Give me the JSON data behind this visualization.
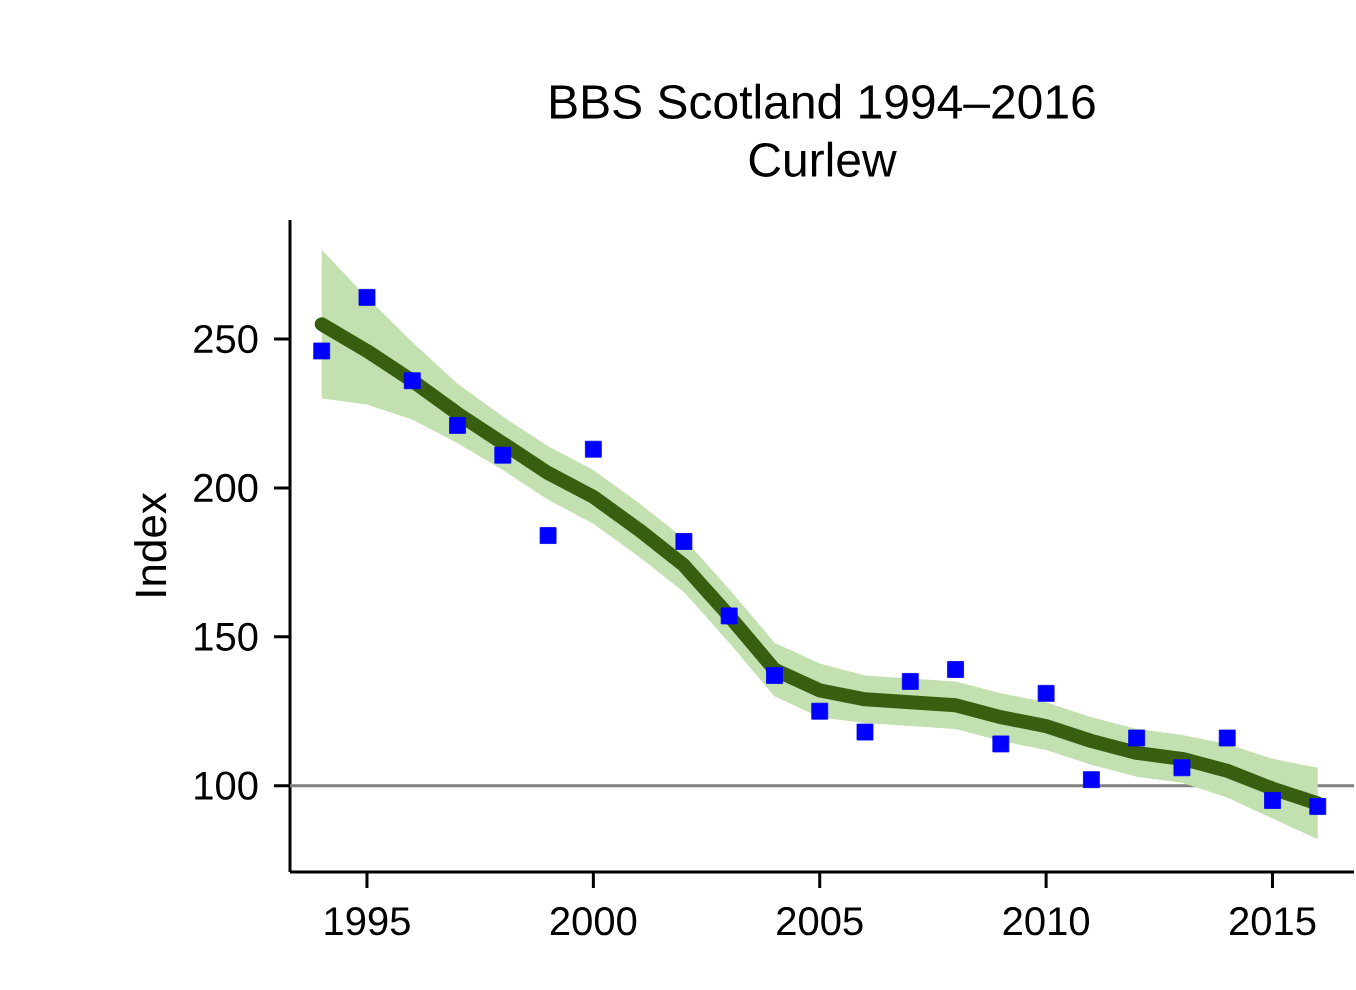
{
  "chart_data": {
    "type": "scatter",
    "title": "BBS Scotland 1994–2016",
    "subtitle": "Curlew",
    "ylabel": "Index",
    "xlim": [
      1993.3,
      2016.8
    ],
    "xticks": [
      1995,
      2000,
      2005,
      2010,
      2015
    ],
    "ylim": [
      71,
      290
    ],
    "yticks": [
      100,
      150,
      200,
      250
    ],
    "grid": false,
    "marker": "square",
    "ref_lines": [
      {
        "axis": "y",
        "value": 100,
        "color": "#808080"
      }
    ],
    "series": [
      {
        "type": "line",
        "color": "#385e0f",
        "marker": "none",
        "x": [
          1994,
          1995,
          1996,
          1997,
          1998,
          1999,
          2000,
          2001,
          2002,
          2003,
          2004,
          2005,
          2006,
          2007,
          2008,
          2009,
          2010,
          2011,
          2012,
          2013,
          2014,
          2015,
          2016
        ],
        "values": [
          255,
          246,
          236,
          225,
          215,
          205,
          197,
          186,
          174,
          157,
          139,
          132,
          129,
          128,
          127,
          123,
          120,
          115,
          111,
          109,
          105,
          99,
          94
        ],
        "lower": [
          230,
          228,
          223,
          215,
          206,
          196,
          188,
          177,
          165,
          148,
          130,
          123,
          121,
          120,
          119,
          115,
          112,
          107,
          103,
          101,
          96,
          89,
          82
        ],
        "upper": [
          280,
          264,
          249,
          235,
          224,
          214,
          206,
          195,
          183,
          166,
          148,
          141,
          137,
          136,
          135,
          131,
          128,
          123,
          119,
          117,
          114,
          109,
          106
        ]
      },
      {
        "color": "#0000ff",
        "x": [
          1994,
          1995,
          1996,
          1997,
          1998,
          1999,
          2000,
          2002,
          2003,
          2004,
          2005,
          2006,
          2007,
          2008,
          2009,
          2010,
          2011,
          2012,
          2013,
          2014,
          2015,
          2016
        ],
        "values": [
          246,
          264,
          236,
          221,
          211,
          184,
          213,
          182,
          157,
          137,
          125,
          118,
          135,
          139,
          114,
          131,
          102,
          116,
          106,
          116,
          95,
          93
        ]
      }
    ]
  }
}
